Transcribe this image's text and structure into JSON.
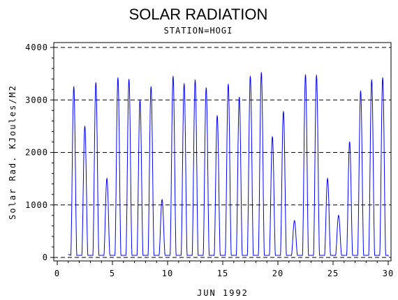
{
  "chart_data": {
    "type": "line",
    "title": "SOLAR RADIATION",
    "subtitle": "STATION=HOGI",
    "xlabel": "JUN 1992",
    "ylabel": "Solar Rad. KJoules/M2",
    "xlim": [
      0,
      30
    ],
    "ylim": [
      0,
      4000
    ],
    "xticks": [
      0,
      5,
      10,
      15,
      20,
      25,
      30
    ],
    "yticks": [
      0,
      1000,
      2000,
      3000,
      4000
    ],
    "grid": "horizontal dashed at y ticks",
    "line_color": "#0000ff",
    "daily_peak_x": [
      1.5,
      2.5,
      3.5,
      4.5,
      5.5,
      6.5,
      7.5,
      8.5,
      9.5,
      10.5,
      11.5,
      12.5,
      13.5,
      14.5,
      15.5,
      16.5,
      17.5,
      18.5,
      19.5,
      20.5,
      21.5,
      22.5,
      23.5,
      24.5,
      25.5,
      26.5,
      27.5,
      28.5,
      29.5
    ],
    "daily_peak_values": [
      3250,
      2500,
      3330,
      1500,
      3420,
      3390,
      3000,
      3250,
      1100,
      3450,
      3310,
      3380,
      3230,
      2700,
      3300,
      3050,
      3450,
      3520,
      2300,
      2780,
      700,
      3480,
      3470,
      1500,
      800,
      2200,
      3170,
      3380,
      3420
    ]
  }
}
